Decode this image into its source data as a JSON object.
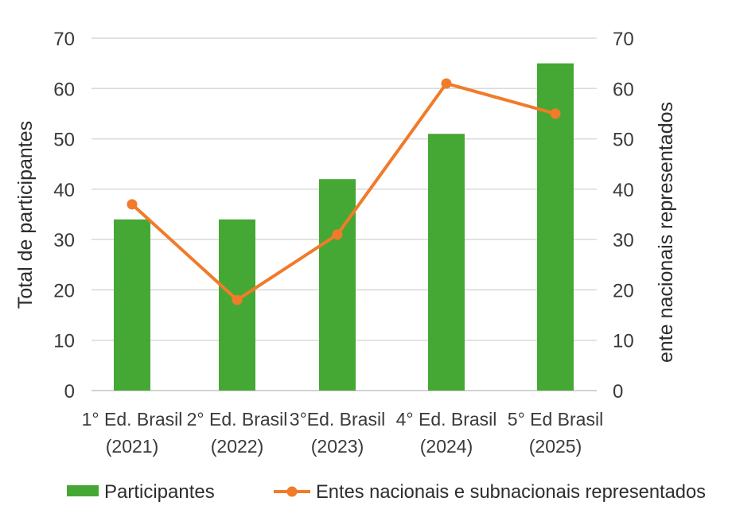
{
  "chart_data": {
    "type": "bar+line",
    "categories": [
      [
        "1° Ed. Brasil",
        "(2021)"
      ],
      [
        "2° Ed. Brasil",
        "(2022)"
      ],
      [
        "3°Ed. Brasil",
        "(2023)"
      ],
      [
        "4° Ed. Brasil",
        "(2024)"
      ],
      [
        "5° Ed Brasil",
        "(2025)"
      ]
    ],
    "series": [
      {
        "name": "Participantes",
        "type": "bar",
        "axis": "left",
        "color": "#45a834",
        "values": [
          34,
          34,
          42,
          51,
          65
        ]
      },
      {
        "name": "Entes nacionais e subnacionais representados",
        "type": "line",
        "axis": "right",
        "color": "#f07b2a",
        "values": [
          37,
          18,
          31,
          61,
          55
        ]
      }
    ],
    "ylabel_left": "Total de participantes",
    "ylabel_right": "ente nacionais representados",
    "ylim": [
      0,
      70
    ],
    "yticks": [
      0,
      10,
      20,
      30,
      40,
      50,
      60,
      70
    ],
    "grid": true,
    "legend_position": "bottom"
  }
}
